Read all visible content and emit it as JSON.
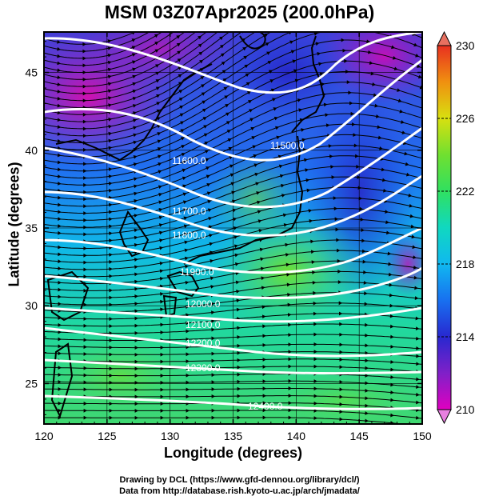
{
  "title": "MSM 03Z07Apr2025 (200.0hPa)",
  "axes": {
    "xlabel": "Longitude (degrees)",
    "ylabel": "Latitude  (degrees)",
    "x_ticks": [
      "120",
      "125",
      "130",
      "135",
      "140",
      "145",
      "150"
    ],
    "y_ticks": [
      "25",
      "30",
      "35",
      "40",
      "45"
    ],
    "x_range": [
      120,
      150
    ],
    "y_range": [
      22.4,
      47.6
    ]
  },
  "contours": [
    {
      "label": "11500.0"
    },
    {
      "label": "11600.0"
    },
    {
      "label": "11700.0"
    },
    {
      "label": "11800.0"
    },
    {
      "label": "11900.0"
    },
    {
      "label": "12000.0"
    },
    {
      "label": "12100.0"
    },
    {
      "label": "12200.0"
    },
    {
      "label": "12300.0"
    },
    {
      "label": "12400.0"
    }
  ],
  "colorbar": {
    "min": 210,
    "max": 230,
    "tick_labels": [
      "210",
      "214",
      "218",
      "222",
      "226",
      "230"
    ],
    "colors": [
      "#c000c0",
      "#7a1fd0",
      "#2430d8",
      "#1878ff",
      "#10c8e0",
      "#20e090",
      "#40e040",
      "#a0e820",
      "#e8e010",
      "#f09010",
      "#e83020"
    ]
  },
  "credits": {
    "line1": "Drawing by DCL (https://www.gfd-dennou.org/library/dcl/)",
    "line2": "Data from http://database.rish.kyoto-u.ac.jp/arch/jmadata/"
  }
}
